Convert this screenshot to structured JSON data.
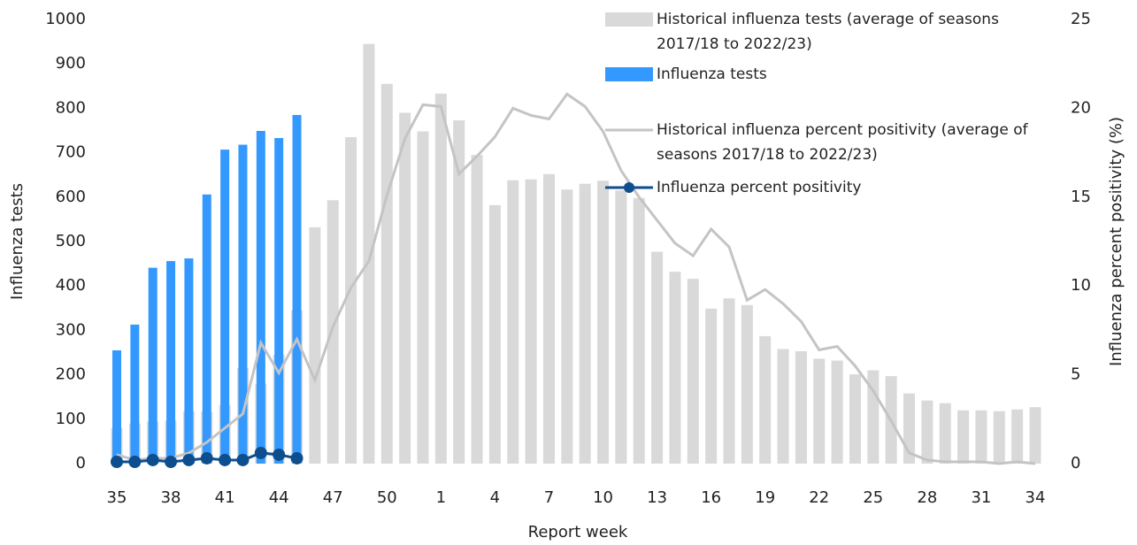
{
  "chart_data": {
    "type": "bar",
    "x_label": "Report week",
    "y_label": "Influenza tests",
    "y2_label": "Influenza percent positivity (%)",
    "categories": [
      "35",
      null,
      null,
      "38",
      null,
      null,
      "41",
      null,
      null,
      "44",
      null,
      null,
      "47",
      null,
      null,
      "50",
      null,
      null,
      "1",
      null,
      null,
      "4",
      null,
      null,
      "7",
      null,
      null,
      "10",
      null,
      null,
      "13",
      null,
      null,
      "16",
      null,
      null,
      "19",
      null,
      null,
      "22",
      null,
      null,
      "25",
      null,
      null,
      "28",
      null,
      null,
      "31",
      null,
      null,
      "34"
    ],
    "ylim": [
      0,
      1000
    ],
    "yticks": [
      0,
      100,
      200,
      300,
      400,
      500,
      600,
      700,
      800,
      900,
      1000
    ],
    "y2lim": [
      0,
      25
    ],
    "y2ticks": [
      0,
      5,
      10,
      15,
      20,
      25
    ],
    "series": [
      {
        "name": "Historical influenza tests (average of seasons 2017/18 to 2022/23)",
        "type": "bar",
        "color": "#d9d9d9",
        "values": [
          80,
          90,
          95,
          97,
          118,
          117,
          132,
          215,
          180,
          245,
          345,
          532,
          593,
          735,
          945,
          855,
          790,
          748,
          833,
          773,
          695,
          582,
          638,
          640,
          652,
          617,
          630,
          637,
          615,
          598,
          477,
          432,
          416,
          349,
          372,
          357,
          287,
          258,
          253,
          236,
          232,
          201,
          210,
          197,
          158,
          142,
          136,
          120,
          120,
          118,
          122,
          127
        ]
      },
      {
        "name": "Influenza tests",
        "type": "bar",
        "color": "#3399ff",
        "values": [
          255,
          313,
          441,
          456,
          462,
          606,
          707,
          718,
          749,
          733,
          785,
          null,
          null,
          null,
          null,
          null,
          null,
          null,
          null,
          null,
          null,
          null,
          null,
          null,
          null,
          null,
          null,
          null,
          null,
          null,
          null,
          null,
          null,
          null,
          null,
          null,
          null,
          null,
          null,
          null,
          null,
          null,
          null,
          null,
          null,
          null,
          null,
          null,
          null,
          null,
          null,
          null
        ]
      },
      {
        "name": "Historical influenza percent positivity (average of seasons 2017/18 to 2022/23)",
        "type": "line",
        "axis": "y2",
        "color": "#c4c4c4",
        "values": [
          0.5,
          0.2,
          0.3,
          0.3,
          0.6,
          1.2,
          2.0,
          2.8,
          6.8,
          5.1,
          7.0,
          4.7,
          7.7,
          9.9,
          11.4,
          15.1,
          18.3,
          20.2,
          20.1,
          16.3,
          17.3,
          18.4,
          20.0,
          19.6,
          19.4,
          20.8,
          20.1,
          18.7,
          16.5,
          15.0,
          13.7,
          12.4,
          11.7,
          13.2,
          12.2,
          9.2,
          9.8,
          9.0,
          8.0,
          6.4,
          6.6,
          5.5,
          4.1,
          2.4,
          0.6,
          0.2,
          0.1,
          0.1,
          0.1,
          0.0,
          0.1,
          0.0
        ]
      },
      {
        "name": "Influenza percent positivity",
        "type": "line",
        "axis": "y2",
        "color": "#0d4e8f",
        "markers": true,
        "values": [
          0.1,
          0.1,
          0.2,
          0.1,
          0.2,
          0.3,
          0.2,
          0.2,
          0.6,
          0.5,
          0.3,
          null,
          null,
          null,
          null,
          null,
          null,
          null,
          null,
          null,
          null,
          null,
          null,
          null,
          null,
          null,
          null,
          null,
          null,
          null,
          null,
          null,
          null,
          null,
          null,
          null,
          null,
          null,
          null,
          null,
          null,
          null,
          null,
          null,
          null,
          null,
          null,
          null,
          null,
          null,
          null,
          null
        ]
      }
    ]
  }
}
